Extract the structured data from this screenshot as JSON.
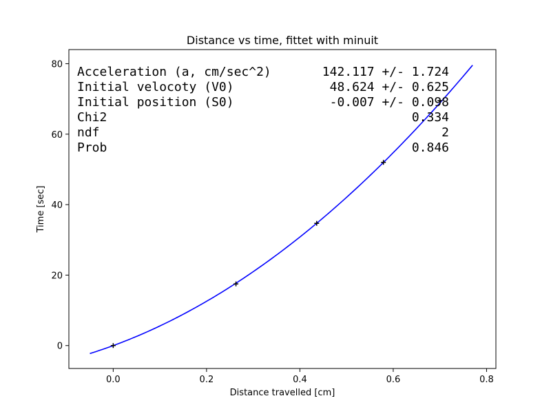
{
  "chart_data": {
    "type": "scatter",
    "title": "Distance vs time, fittet with minuit",
    "xlabel": "Distance travelled [cm]",
    "ylabel": "Time [sec]",
    "xlim": [
      -0.095,
      0.82
    ],
    "ylim": [
      -6.5,
      84
    ],
    "xticks": [
      0.0,
      0.2,
      0.4,
      0.6,
      0.8
    ],
    "xtick_labels": [
      "0.0",
      "0.2",
      "0.4",
      "0.6",
      "0.8"
    ],
    "yticks": [
      0,
      20,
      40,
      60,
      80
    ],
    "ytick_labels": [
      "0",
      "20",
      "40",
      "60",
      "80"
    ],
    "grid": false,
    "points": {
      "x": [
        0.0,
        0.263,
        0.436,
        0.579,
        0.7
      ],
      "y": [
        0.0,
        17.5,
        34.7,
        52.0,
        69.5
      ],
      "color": "#000000",
      "marker": "+"
    },
    "fit": {
      "color": "#0000ff",
      "x_range": [
        -0.05,
        0.77
      ],
      "a": 142.117,
      "v0": 48.624,
      "s0": -0.007
    },
    "annotations": [
      {
        "label": "Acceleration (a, cm/sec^2)",
        "value": "142.117 +/- 1.724"
      },
      {
        "label": "Initial velocoty (V0)",
        "value": "48.624 +/- 0.625"
      },
      {
        "label": "Initial position (S0)",
        "value": "-0.007 +/- 0.098"
      },
      {
        "label": "Chi2",
        "value": "0.334"
      },
      {
        "label": "ndf",
        "value": "2"
      },
      {
        "label": "Prob",
        "value": "0.846"
      }
    ]
  }
}
